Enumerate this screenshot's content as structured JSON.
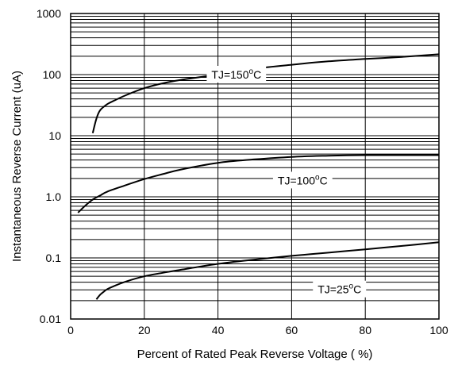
{
  "chart_data": {
    "type": "line",
    "title": "",
    "xlabel": "Percent of Rated Peak Reverse Voltage ( %)",
    "ylabel": "Instantaneous Reverse Current (uA)",
    "xlim": [
      0,
      100
    ],
    "ylim": [
      0.01,
      1000
    ],
    "yscale": "log",
    "grid": true,
    "x_tick_labels": [
      "0",
      "20",
      "40",
      "60",
      "80",
      "100"
    ],
    "x_ticks": [
      0,
      20,
      40,
      60,
      80,
      100
    ],
    "y_tick_labels": [
      "0.01",
      "0.1",
      "1.0",
      "10",
      "100",
      "1000"
    ],
    "y_ticks": [
      0.01,
      0.1,
      1,
      10,
      100,
      1000
    ],
    "series": [
      {
        "label_prefix": "TJ=150",
        "label_sup": "o",
        "label_suffix": "C",
        "label_at": [
          45,
          100
        ],
        "x": [
          6,
          7,
          8,
          10,
          12,
          15,
          20,
          25,
          30,
          40,
          50,
          60,
          70,
          80,
          90,
          100
        ],
        "y": [
          11,
          19,
          26,
          33,
          38,
          46,
          60,
          72,
          82,
          100,
          125,
          145,
          165,
          180,
          195,
          215
        ]
      },
      {
        "label_prefix": "TJ=100",
        "label_sup": "o",
        "label_suffix": "C",
        "label_at": [
          63,
          1.85
        ],
        "x": [
          2,
          4,
          6,
          8,
          10,
          15,
          20,
          25,
          30,
          40,
          50,
          60,
          70,
          80,
          90,
          100
        ],
        "y": [
          0.55,
          0.72,
          0.9,
          1.05,
          1.22,
          1.55,
          1.95,
          2.35,
          2.8,
          3.6,
          4.1,
          4.5,
          4.7,
          4.8,
          4.8,
          4.8
        ]
      },
      {
        "label_prefix": "TJ=25",
        "label_sup": "o",
        "label_suffix": "C",
        "label_at": [
          73,
          0.0305
        ],
        "x": [
          7,
          8,
          9,
          10,
          12,
          15,
          20,
          25,
          30,
          40,
          50,
          60,
          70,
          80,
          90,
          100
        ],
        "y": [
          0.021,
          0.025,
          0.028,
          0.031,
          0.035,
          0.041,
          0.05,
          0.057,
          0.064,
          0.08,
          0.094,
          0.108,
          0.122,
          0.138,
          0.157,
          0.18
        ]
      }
    ]
  }
}
